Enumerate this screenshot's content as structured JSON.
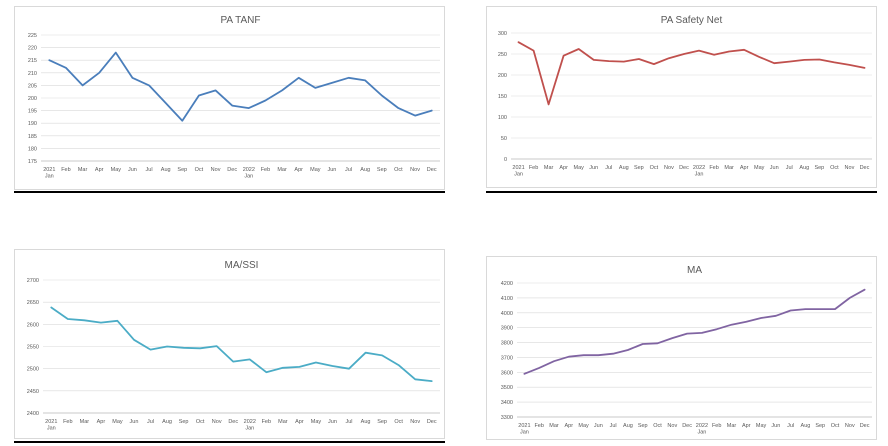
{
  "chart_data": [
    {
      "type": "line",
      "title": "PA TANF",
      "color": "#4a7ebb",
      "ylim": [
        175,
        225
      ],
      "yticks": [
        175,
        180,
        185,
        190,
        195,
        200,
        205,
        210,
        215,
        220,
        225
      ],
      "grid": true,
      "x": [
        "2021 Jan",
        "Feb",
        "Mar",
        "Apr",
        "May",
        "Jun",
        "Jul",
        "Aug",
        "Sep",
        "Oct",
        "Nov",
        "Dec",
        "2022 Jan",
        "Feb",
        "Mar",
        "Apr",
        "May",
        "Jun",
        "Jul",
        "Aug",
        "Sep",
        "Oct",
        "Nov",
        "Dec"
      ],
      "values": [
        215,
        212,
        205,
        210,
        218,
        208,
        205,
        198,
        191,
        201,
        203,
        197,
        196,
        199,
        203,
        208,
        204,
        206,
        208,
        207,
        201,
        196,
        193,
        195
      ]
    },
    {
      "type": "line",
      "title": "PA Safety Net",
      "color": "#c0504d",
      "ylim": [
        0,
        300
      ],
      "yticks": [
        0,
        50,
        100,
        150,
        200,
        250,
        300
      ],
      "grid": true,
      "x": [
        "2021 Jan",
        "Feb",
        "Mar",
        "Apr",
        "May",
        "Jun",
        "Jul",
        "Aug",
        "Sep",
        "Oct",
        "Nov",
        "Dec",
        "2022 Jan",
        "Feb",
        "Mar",
        "Apr",
        "May",
        "Jun",
        "Jul",
        "Aug",
        "Sep",
        "Oct",
        "Nov",
        "Dec"
      ],
      "values": [
        278,
        258,
        130,
        246,
        262,
        236,
        233,
        232,
        238,
        226,
        240,
        250,
        258,
        248,
        256,
        260,
        243,
        228,
        232,
        236,
        237,
        230,
        224,
        217
      ]
    },
    {
      "type": "line",
      "title": "MA/SSI",
      "color": "#4bacc6",
      "ylim": [
        2400,
        2700
      ],
      "yticks": [
        2400,
        2450,
        2500,
        2550,
        2600,
        2650,
        2700
      ],
      "grid": true,
      "x": [
        "2021 Jan",
        "Feb",
        "Mar",
        "Apr",
        "May",
        "Jun",
        "Jul",
        "Aug",
        "Sep",
        "Oct",
        "Nov",
        "Dec",
        "2022 Jan",
        "Feb",
        "Mar",
        "Apr",
        "May",
        "Jun",
        "Jul",
        "Aug",
        "Sep",
        "Oct",
        "Nov",
        "Dec"
      ],
      "values": [
        2638,
        2612,
        2609,
        2604,
        2608,
        2565,
        2543,
        2550,
        2547,
        2546,
        2551,
        2516,
        2521,
        2492,
        2502,
        2504,
        2514,
        2506,
        2500,
        2536,
        2530,
        2508,
        2476,
        2472
      ]
    },
    {
      "type": "line",
      "title": "MA",
      "color": "#8064a2",
      "ylim": [
        3300,
        4200
      ],
      "yticks": [
        3300,
        3400,
        3500,
        3600,
        3700,
        3800,
        3900,
        4000,
        4100,
        4200
      ],
      "grid": true,
      "x": [
        "2021 Jan",
        "Feb",
        "Mar",
        "Apr",
        "May",
        "Jun",
        "Jul",
        "Aug",
        "Sep",
        "Oct",
        "Nov",
        "Dec",
        "2022 Jan",
        "Feb",
        "Mar",
        "Apr",
        "May",
        "Jun",
        "Jul",
        "Aug",
        "Sep",
        "Oct",
        "Nov",
        "Dec"
      ],
      "values": [
        3590,
        3630,
        3675,
        3705,
        3715,
        3715,
        3725,
        3750,
        3790,
        3795,
        3830,
        3860,
        3865,
        3890,
        3920,
        3940,
        3965,
        3980,
        4015,
        4025,
        4025,
        4025,
        4100,
        4155
      ]
    }
  ]
}
